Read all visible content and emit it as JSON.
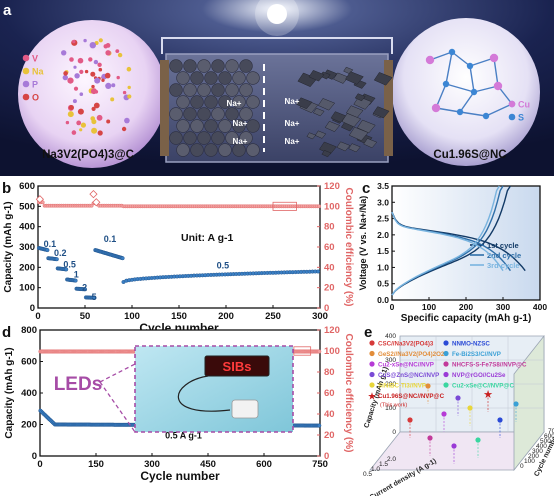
{
  "panel_a": {
    "label": "a",
    "left_material": "Na3V2(PO4)3@C",
    "right_material": "Cu1.96S@NC",
    "left_legend": [
      {
        "symbol": "V",
        "color": "#e25a86"
      },
      {
        "symbol": "Na",
        "color": "#e8c23a"
      },
      {
        "symbol": "P",
        "color": "#a77ad8"
      },
      {
        "symbol": "O",
        "color": "#d64545"
      }
    ],
    "right_legend": [
      {
        "symbol": "Cu",
        "color": "#d47ad8"
      },
      {
        "symbol": "S",
        "color": "#3c86d4"
      }
    ],
    "ion_label": "Na+"
  },
  "chart_data": [
    {
      "type": "scatter",
      "panel": "b",
      "xlabel": "Cycle number",
      "ylabel": "Capacity (mAh g-1)",
      "y2label": "Coulombic efficiency (%)",
      "xlim": [
        0,
        300
      ],
      "ylim": [
        0,
        600
      ],
      "y2lim": [
        0,
        120
      ],
      "xticks": [
        0,
        50,
        100,
        150,
        200,
        250,
        300
      ],
      "yticks": [
        0,
        100,
        200,
        300,
        400,
        500,
        600
      ],
      "y2ticks": [
        0,
        20,
        40,
        60,
        80,
        100,
        120
      ],
      "unit_label": "Unit: A g-1",
      "rate_labels": [
        {
          "text": "0.1",
          "x": 6,
          "y": 300
        },
        {
          "text": "0.2",
          "x": 17,
          "y": 255
        },
        {
          "text": "0.5",
          "x": 27,
          "y": 200
        },
        {
          "text": "1",
          "x": 38,
          "y": 150
        },
        {
          "text": "2",
          "x": 47,
          "y": 85
        },
        {
          "text": "5",
          "x": 57,
          "y": 40
        },
        {
          "text": "0.1",
          "x": 70,
          "y": 325
        },
        {
          "text": "0.5",
          "x": 190,
          "y": 195
        }
      ],
      "capacity_segments": [
        {
          "x_start": 1,
          "x_end": 10,
          "y_start": 295,
          "y_end": 285
        },
        {
          "x_start": 11,
          "x_end": 20,
          "y_start": 245,
          "y_end": 240
        },
        {
          "x_start": 21,
          "x_end": 30,
          "y_start": 195,
          "y_end": 190
        },
        {
          "x_start": 31,
          "x_end": 40,
          "y_start": 140,
          "y_end": 135
        },
        {
          "x_start": 41,
          "x_end": 50,
          "y_start": 95,
          "y_end": 92
        },
        {
          "x_start": 51,
          "x_end": 60,
          "y_start": 52,
          "y_end": 50
        },
        {
          "x_start": 61,
          "x_end": 90,
          "y_start": 285,
          "y_end": 245
        },
        {
          "x_start": 91,
          "x_end": 300,
          "y_start": 128,
          "y_end": 180
        }
      ],
      "coulombic_efficiency": {
        "first_cycles": [
          [
            2,
            107
          ],
          [
            59,
            112
          ],
          [
            62,
            104
          ]
        ],
        "stable_value": 100
      }
    },
    {
      "type": "line",
      "panel": "c",
      "xlabel": "Specific capacity (mAh g-1)",
      "ylabel": "Voltage (V vs. Na+/Na)",
      "xlim": [
        0,
        400
      ],
      "ylim": [
        0,
        3.5
      ],
      "xticks": [
        0,
        100,
        200,
        300,
        400
      ],
      "yticks": [
        0,
        0.5,
        1.0,
        1.5,
        2.0,
        2.5,
        3.0,
        3.5
      ],
      "series": [
        {
          "name": "1st cycle",
          "color": "#123a66",
          "discharge_max": 360,
          "charge_max": 320
        },
        {
          "name": "2nd cycle",
          "color": "#2f6fa8",
          "discharge_max": 320,
          "charge_max": 300
        },
        {
          "name": "3rd cycle",
          "color": "#79b4df",
          "discharge_max": 300,
          "charge_max": 290
        }
      ]
    },
    {
      "type": "scatter",
      "panel": "d",
      "xlabel": "Cycle number",
      "ylabel": "Capacity (mAh g-1)",
      "y2label": "Coulombic efficiency (%)",
      "xlim": [
        0,
        750
      ],
      "ylim": [
        0,
        800
      ],
      "y2lim": [
        0,
        120
      ],
      "xticks": [
        0,
        150,
        300,
        450,
        600,
        750
      ],
      "yticks": [
        0,
        200,
        400,
        600,
        800
      ],
      "y2ticks": [
        0,
        20,
        40,
        60,
        80,
        100,
        120
      ],
      "rate_label": "0.5 A g-1",
      "capacity": {
        "initial": 290,
        "settle_cycle": 40,
        "stable": 200
      },
      "coulombic_efficiency": {
        "stable_value": 99.5
      },
      "inset": {
        "sign_text": "SIBs",
        "callout": "LEDs"
      }
    },
    {
      "type": "scatter",
      "panel": "e",
      "axis_labels": [
        "Capacity (mAh g-1)",
        "Current density (A g-1)",
        "Cycle number"
      ],
      "axis_ticks": {
        "capacity": [
          0,
          100,
          200,
          300,
          400
        ],
        "current": [
          0.5,
          1.0,
          1.5,
          2.0
        ],
        "cycles": [
          0,
          100,
          200,
          300,
          400,
          500,
          600,
          700
        ]
      },
      "legend": [
        {
          "name": "CSC//Na3V2(PO4)3",
          "color": "#d63a3a",
          "marker": "circle"
        },
        {
          "name": "GeS2//Na3V2(PO4)2O2F",
          "color": "#e28d3a",
          "marker": "circle"
        },
        {
          "name": "Cu2-xSe@NC//NVP",
          "color": "#b63ad6",
          "marker": "circle"
        },
        {
          "name": "CuS@ZnS@NC//NVP",
          "color": "#7a4ad6",
          "marker": "circle"
        },
        {
          "name": "SiNiBC-Ti3//NVP",
          "color": "#e8d63a",
          "marker": "circle"
        },
        {
          "name": "Cu1.96S@NC//NVP@C",
          "color": "#c81e1e",
          "marker": "star",
          "note": "(This work)"
        },
        {
          "name": "NNMO-NZSC",
          "color": "#2a4ad6",
          "marker": "circle"
        },
        {
          "name": "Fe-Bi2S3/C//NVP",
          "color": "#3aa0d6",
          "marker": "circle"
        },
        {
          "name": "NHCFS-S-Fe7S8//NVP@C",
          "color": "#c23a9a",
          "marker": "circle"
        },
        {
          "name": "NVP@rGO//Cu2Se",
          "color": "#9a3ad6",
          "marker": "circle"
        },
        {
          "name": "Cu2-xSe@C//NVP@C",
          "color": "#3ad6a0",
          "marker": "circle"
        }
      ]
    }
  ],
  "panel_labels": {
    "b": "b",
    "c": "c",
    "d": "d",
    "e": "e"
  }
}
